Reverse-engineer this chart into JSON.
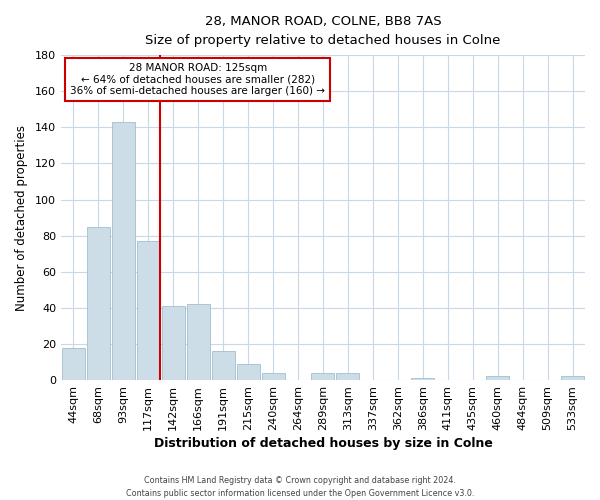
{
  "title": "28, MANOR ROAD, COLNE, BB8 7AS",
  "subtitle": "Size of property relative to detached houses in Colne",
  "xlabel": "Distribution of detached houses by size in Colne",
  "ylabel": "Number of detached properties",
  "bar_labels": [
    "44sqm",
    "68sqm",
    "93sqm",
    "117sqm",
    "142sqm",
    "166sqm",
    "191sqm",
    "215sqm",
    "240sqm",
    "264sqm",
    "289sqm",
    "313sqm",
    "337sqm",
    "362sqm",
    "386sqm",
    "411sqm",
    "435sqm",
    "460sqm",
    "484sqm",
    "509sqm",
    "533sqm"
  ],
  "bar_values": [
    18,
    85,
    143,
    77,
    41,
    42,
    16,
    9,
    4,
    0,
    4,
    4,
    0,
    0,
    1,
    0,
    0,
    2,
    0,
    0,
    2
  ],
  "bar_color": "#ccdde8",
  "bar_edge_color": "#a0bfd0",
  "vline_x_idx": 3,
  "vline_color": "#cc0000",
  "annotation_title": "28 MANOR ROAD: 125sqm",
  "annotation_line1": "← 64% of detached houses are smaller (282)",
  "annotation_line2": "36% of semi-detached houses are larger (160) →",
  "annotation_box_color": "white",
  "annotation_box_edge": "#cc0000",
  "ylim": [
    0,
    180
  ],
  "yticks": [
    0,
    20,
    40,
    60,
    80,
    100,
    120,
    140,
    160,
    180
  ],
  "footer1": "Contains HM Land Registry data © Crown copyright and database right 2024.",
  "footer2": "Contains public sector information licensed under the Open Government Licence v3.0.",
  "background_color": "#ffffff",
  "grid_color": "#c8d8e8"
}
